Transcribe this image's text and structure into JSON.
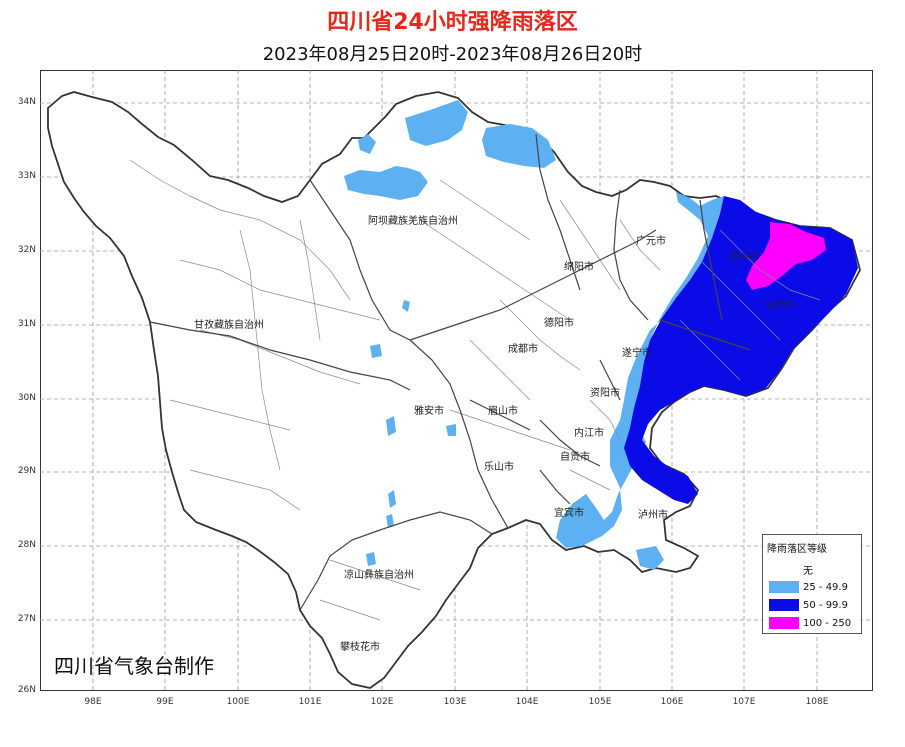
{
  "title": "四川省24小时强降雨落区",
  "subtitle": "2023年08月25日20时-2023年08月26日20时",
  "credit": "四川省气象台制作",
  "latitudes": [
    "34N",
    "33N",
    "32N",
    "31N",
    "30N",
    "29N",
    "28N",
    "27N",
    "26N"
  ],
  "longitudes": [
    "98E",
    "99E",
    "100E",
    "101E",
    "102E",
    "103E",
    "104E",
    "105E",
    "106E",
    "107E",
    "108E"
  ],
  "cities": {
    "aba": "阿坝藏族羌族自治州",
    "ganzi": "甘孜藏族自治州",
    "liangshan": "凉山彝族自治州",
    "panzhihua": "攀枝花市",
    "guangyuan": "广元市",
    "mianyang": "绵阳市",
    "deyang": "德阳市",
    "chengdu": "成都市",
    "yaan": "雅安市",
    "meishan": "眉山市",
    "leshan": "乐山市",
    "ziyang": "资阳市",
    "neijiang": "内江市",
    "zigong": "自贡市",
    "yibin": "宜宾市",
    "luzhou": "泸州市",
    "bazhong": "巴中市",
    "dazhou": "达州市",
    "suining": "遂宁市"
  },
  "legend": {
    "title": "降雨落区等级",
    "items": [
      {
        "label": "无",
        "color": "#ffffff"
      },
      {
        "label": "25 - 49.9",
        "color": "#5db0f2"
      },
      {
        "label": "50 - 99.9",
        "color": "#0b0be8"
      },
      {
        "label": "100 - 250",
        "color": "#ff00ff"
      }
    ]
  },
  "colors": {
    "title": "#e8261c",
    "light_rain_zone": "#5db0f2",
    "heavy_rain_zone": "#0b0be8",
    "storm_zone": "#ff00ff",
    "province_border": "#333333",
    "county_border": "#8a8a8a"
  }
}
